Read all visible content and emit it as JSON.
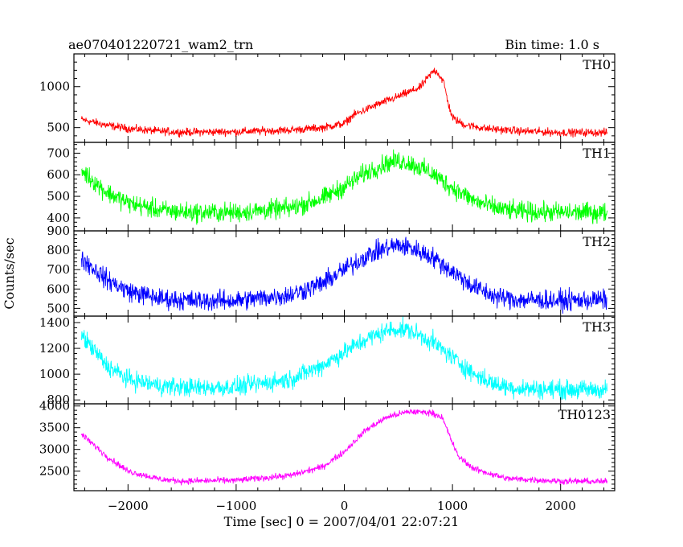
{
  "header": {
    "title": "ae070401220721_wam2_trn",
    "bin_time": "Bin time: 1.0 s"
  },
  "y_axis_label": "Counts/sec",
  "x_axis_label": "Time [sec] 0 = 2007/04/01 22:07:21",
  "chart_data": {
    "type": "line",
    "xlim": [
      -2500,
      2500
    ],
    "x_ticks": [
      -2000,
      -1000,
      0,
      1000,
      2000
    ],
    "x_tick_labels": [
      "−2000",
      "−1000",
      "0",
      "1000",
      "2000"
    ],
    "panels": [
      {
        "name": "TH0",
        "color": "#ff0000",
        "ylim": [
          320,
          1400
        ],
        "y_ticks": [
          500,
          1000
        ],
        "noise": 30,
        "x": [
          -2430,
          -2200,
          -2000,
          -1700,
          -1500,
          -1000,
          -500,
          -200,
          0,
          80,
          300,
          500,
          700,
          780,
          830,
          860,
          920,
          960,
          1000,
          1100,
          1300,
          1600,
          2000,
          2430
        ],
        "values": [
          600,
          530,
          490,
          455,
          445,
          450,
          470,
          500,
          550,
          650,
          780,
          880,
          990,
          1120,
          1200,
          1180,
          1050,
          800,
          620,
          540,
          490,
          460,
          440,
          440
        ]
      },
      {
        "name": "TH1",
        "color": "#00ff00",
        "ylim": [
          340,
          750
        ],
        "y_ticks": [
          400,
          500,
          600,
          700
        ],
        "noise": 28,
        "x": [
          -2430,
          -2200,
          -2000,
          -1700,
          -1400,
          -1000,
          -500,
          -200,
          0,
          200,
          400,
          500,
          600,
          800,
          1000,
          1200,
          1400,
          1600,
          2000,
          2430
        ],
        "values": [
          620,
          520,
          470,
          435,
          425,
          425,
          445,
          490,
          545,
          610,
          655,
          665,
          655,
          610,
          540,
          480,
          445,
          430,
          425,
          425
        ]
      },
      {
        "name": "TH2",
        "color": "#0000ff",
        "ylim": [
          460,
          900
        ],
        "y_ticks": [
          500,
          600,
          700,
          800,
          900
        ],
        "noise": 32,
        "x": [
          -2430,
          -2200,
          -2000,
          -1700,
          -1400,
          -1000,
          -500,
          -200,
          0,
          200,
          400,
          500,
          600,
          800,
          1000,
          1200,
          1400,
          1600,
          2000,
          2430
        ],
        "values": [
          760,
          650,
          590,
          550,
          540,
          540,
          570,
          630,
          700,
          770,
          815,
          825,
          815,
          770,
          690,
          610,
          560,
          545,
          540,
          545
        ]
      },
      {
        "name": "TH3",
        "color": "#00ffff",
        "ylim": [
          770,
          1450
        ],
        "y_ticks": [
          800,
          1000,
          1200,
          1400
        ],
        "noise": 45,
        "x": [
          -2430,
          -2200,
          -2000,
          -1700,
          -1400,
          -1000,
          -500,
          -200,
          0,
          200,
          400,
          500,
          600,
          800,
          1000,
          1200,
          1400,
          1600,
          2000,
          2430
        ],
        "values": [
          1300,
          1070,
          960,
          910,
          895,
          900,
          960,
          1070,
          1170,
          1270,
          1340,
          1350,
          1340,
          1260,
          1130,
          1000,
          920,
          890,
          880,
          880
        ]
      },
      {
        "name": "TH0123",
        "color": "#ff00ff",
        "ylim": [
          2050,
          4050
        ],
        "y_ticks": [
          2500,
          3000,
          3500,
          4000
        ],
        "noise": 45,
        "x": [
          -2430,
          -2200,
          -2000,
          -1700,
          -1500,
          -1000,
          -500,
          -200,
          0,
          200,
          400,
          600,
          800,
          900,
          960,
          1050,
          1200,
          1500,
          2000,
          2430
        ],
        "values": [
          3350,
          2850,
          2500,
          2310,
          2270,
          2290,
          2400,
          2600,
          2950,
          3450,
          3750,
          3870,
          3850,
          3750,
          3400,
          2850,
          2550,
          2330,
          2270,
          2260
        ]
      }
    ]
  }
}
